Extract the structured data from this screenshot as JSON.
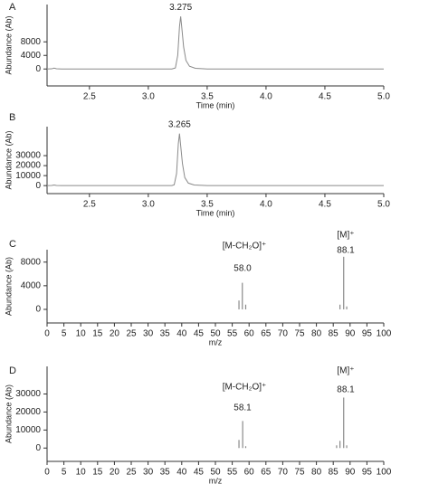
{
  "chart_data": [
    {
      "type": "line",
      "panel": "A",
      "peak_label": "3.275",
      "xlabel": "Time (min)",
      "ylabel": "Abundance (Ab)",
      "color": "#8a8a8a",
      "x": [
        2.14,
        2.18,
        2.2,
        2.22,
        2.26,
        3.2,
        3.23,
        3.25,
        3.265,
        3.275,
        3.285,
        3.3,
        3.32,
        3.35,
        3.4,
        3.5,
        5.0
      ],
      "values": [
        0,
        50,
        250,
        80,
        0,
        0,
        300,
        4000,
        12500,
        15500,
        12000,
        6500,
        2500,
        800,
        200,
        0,
        0
      ],
      "xlim": [
        2.14,
        5.0
      ],
      "ylim": [
        -5000,
        19000
      ],
      "xticks": [
        2.5,
        {
          "value": 3,
          "label": "3.0"
        },
        3.5,
        {
          "value": 4,
          "label": "4.0"
        },
        4.5,
        {
          "value": 5,
          "label": "5.0"
        }
      ],
      "yticks": [
        0,
        4000,
        8000
      ]
    },
    {
      "type": "line",
      "panel": "B",
      "peak_label": "3.265",
      "xlabel": "Time (min)",
      "ylabel": "Abundance (Ab)",
      "color": "#8a8a8a",
      "x": [
        2.14,
        2.18,
        2.2,
        2.22,
        2.26,
        3.2,
        3.22,
        3.24,
        3.255,
        3.265,
        3.275,
        3.29,
        3.31,
        3.34,
        3.39,
        3.5,
        5.0
      ],
      "values": [
        0,
        100,
        600,
        150,
        0,
        0,
        800,
        12000,
        42000,
        52000,
        40000,
        22000,
        8000,
        2500,
        600,
        0,
        0
      ],
      "xlim": [
        2.14,
        5.0
      ],
      "ylim": [
        -8000,
        59000
      ],
      "xticks": [
        2.5,
        {
          "value": 3,
          "label": "3.0"
        },
        3.5,
        {
          "value": 4,
          "label": "4.0"
        },
        4.5,
        {
          "value": 5,
          "label": "5.0"
        }
      ],
      "yticks": [
        0,
        10000,
        20000,
        30000
      ]
    },
    {
      "type": "bar",
      "panel": "C",
      "annotations": [
        "[M-CH₂O]⁺",
        "58.0",
        "[M]⁺",
        "88.1"
      ],
      "xlabel": "m/z",
      "ylabel": "Abundance (Ab)",
      "color": "#8a8a8a",
      "x": [
        57.0,
        58.0,
        59.0,
        87.0,
        88.1,
        89.0
      ],
      "values": [
        1500,
        4500,
        800,
        800,
        8900,
        500
      ],
      "xlim": [
        0,
        100
      ],
      "ylim": [
        -2300,
        10100
      ],
      "xticks": [
        0,
        5,
        10,
        15,
        20,
        25,
        30,
        35,
        40,
        45,
        50,
        55,
        60,
        65,
        70,
        75,
        80,
        85,
        90,
        95,
        100
      ],
      "yticks": [
        0,
        4000,
        8000
      ]
    },
    {
      "type": "bar",
      "panel": "D",
      "annotations": [
        "[M-CH₂O]⁺",
        "58.1",
        "[M]⁺",
        "88.1"
      ],
      "xlabel": "m/z",
      "ylabel": "Abundance (Ab)",
      "color": "#8a8a8a",
      "x": [
        57.0,
        58.1,
        59.0,
        86.0,
        87.0,
        88.1,
        89.0
      ],
      "values": [
        4500,
        15000,
        1000,
        1500,
        4000,
        28000,
        1500
      ],
      "xlim": [
        0,
        100
      ],
      "ylim": [
        -7400,
        45300
      ],
      "xticks": [
        0,
        5,
        10,
        15,
        20,
        25,
        30,
        35,
        40,
        45,
        50,
        55,
        60,
        65,
        70,
        75,
        80,
        85,
        90,
        95,
        100
      ],
      "yticks": [
        0,
        10000,
        20000,
        30000
      ]
    }
  ]
}
